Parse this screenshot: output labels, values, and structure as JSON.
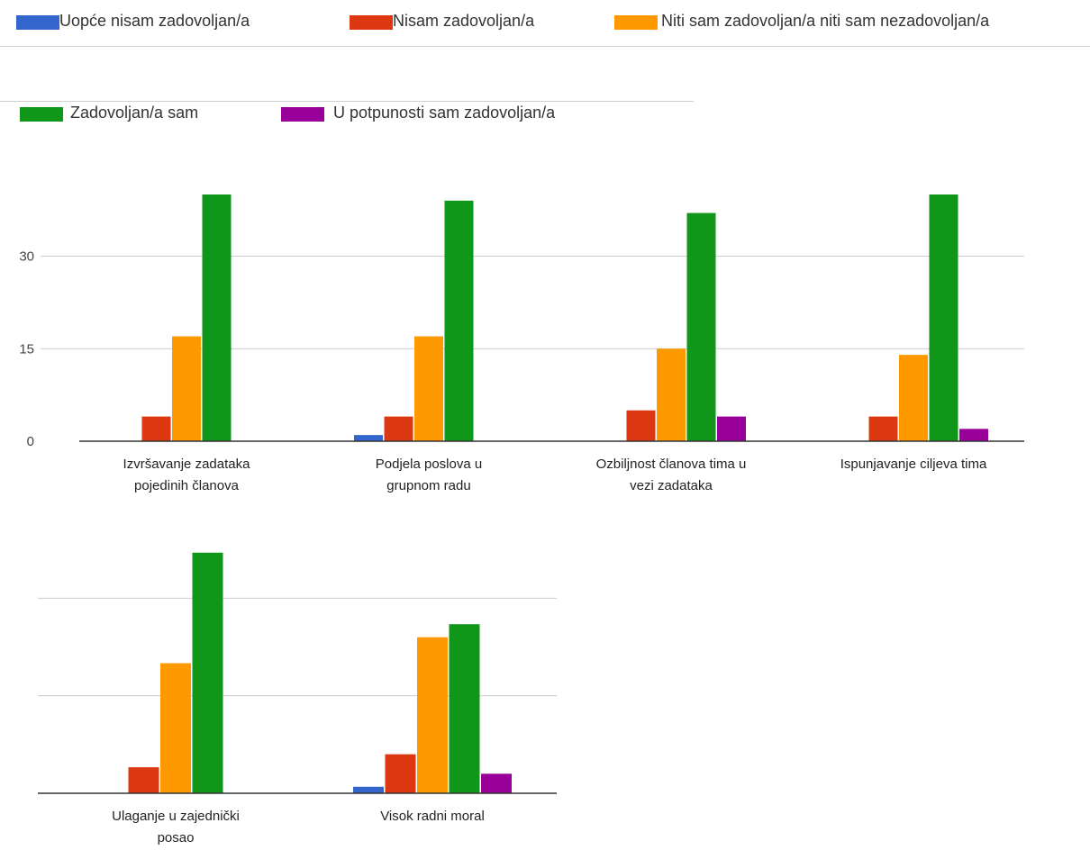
{
  "legend": [
    {
      "label": "Uopće nisam zadovoljan/a",
      "color": "#3366cc"
    },
    {
      "label": "Nisam zadovoljan/a",
      "color": "#dc3912"
    },
    {
      "label": "Niti sam zadovoljan/a niti sam nezadovoljan/a",
      "color": "#ff9900"
    },
    {
      "label": "Zadovoljan/a sam",
      "color": "#109618"
    },
    {
      "label": "U potpunosti sam zadovoljan/a",
      "color": "#990099"
    }
  ],
  "chart_data": [
    {
      "type": "bar",
      "ylim": [
        0,
        40
      ],
      "yticks": [
        0,
        15,
        30
      ],
      "ytick_labels": [
        "0",
        "15",
        "30"
      ],
      "categories": [
        [
          "Izvršavanje zadataka",
          "pojedinih članova"
        ],
        [
          "Podjela poslova u",
          "grupnom radu"
        ],
        [
          "Ozbiljnost članova tima u",
          "vezi zadataka"
        ],
        [
          "Ispunjavanje ciljeva tima"
        ]
      ],
      "series": [
        {
          "name": "Uopće nisam zadovoljan/a",
          "color": "#3366cc",
          "values": [
            0,
            1,
            0,
            0
          ]
        },
        {
          "name": "Nisam zadovoljan/a",
          "color": "#dc3912",
          "values": [
            4,
            4,
            5,
            4
          ]
        },
        {
          "name": "Niti sam zadovoljan/a niti sam nezadovoljan/a",
          "color": "#ff9900",
          "values": [
            17,
            17,
            15,
            14
          ]
        },
        {
          "name": "Zadovoljan/a sam",
          "color": "#109618",
          "values": [
            40,
            39,
            37,
            40
          ]
        },
        {
          "name": "U potpunosti sam zadovoljan/a",
          "color": "#990099",
          "values": [
            0,
            0,
            4,
            2
          ]
        }
      ]
    },
    {
      "type": "bar",
      "ylim": [
        0,
        45
      ],
      "yticks": [
        0,
        15,
        30
      ],
      "ytick_labels": [
        "",
        "",
        ""
      ],
      "categories": [
        [
          "Ulaganje u zajednički",
          "posao"
        ],
        [
          "Visok radni moral"
        ]
      ],
      "series": [
        {
          "name": "Uopće nisam zadovoljan/a",
          "color": "#3366cc",
          "values": [
            0,
            1
          ]
        },
        {
          "name": "Nisam zadovoljan/a",
          "color": "#dc3912",
          "values": [
            4,
            6
          ]
        },
        {
          "name": "Niti sam zadovoljan/a niti sam nezadovoljan/a",
          "color": "#ff9900",
          "values": [
            20,
            24
          ]
        },
        {
          "name": "Zadovoljan/a sam",
          "color": "#109618",
          "values": [
            37,
            26
          ]
        },
        {
          "name": "U potpunosti sam zadovoljan/a",
          "color": "#990099",
          "values": [
            0,
            3
          ]
        }
      ]
    }
  ]
}
